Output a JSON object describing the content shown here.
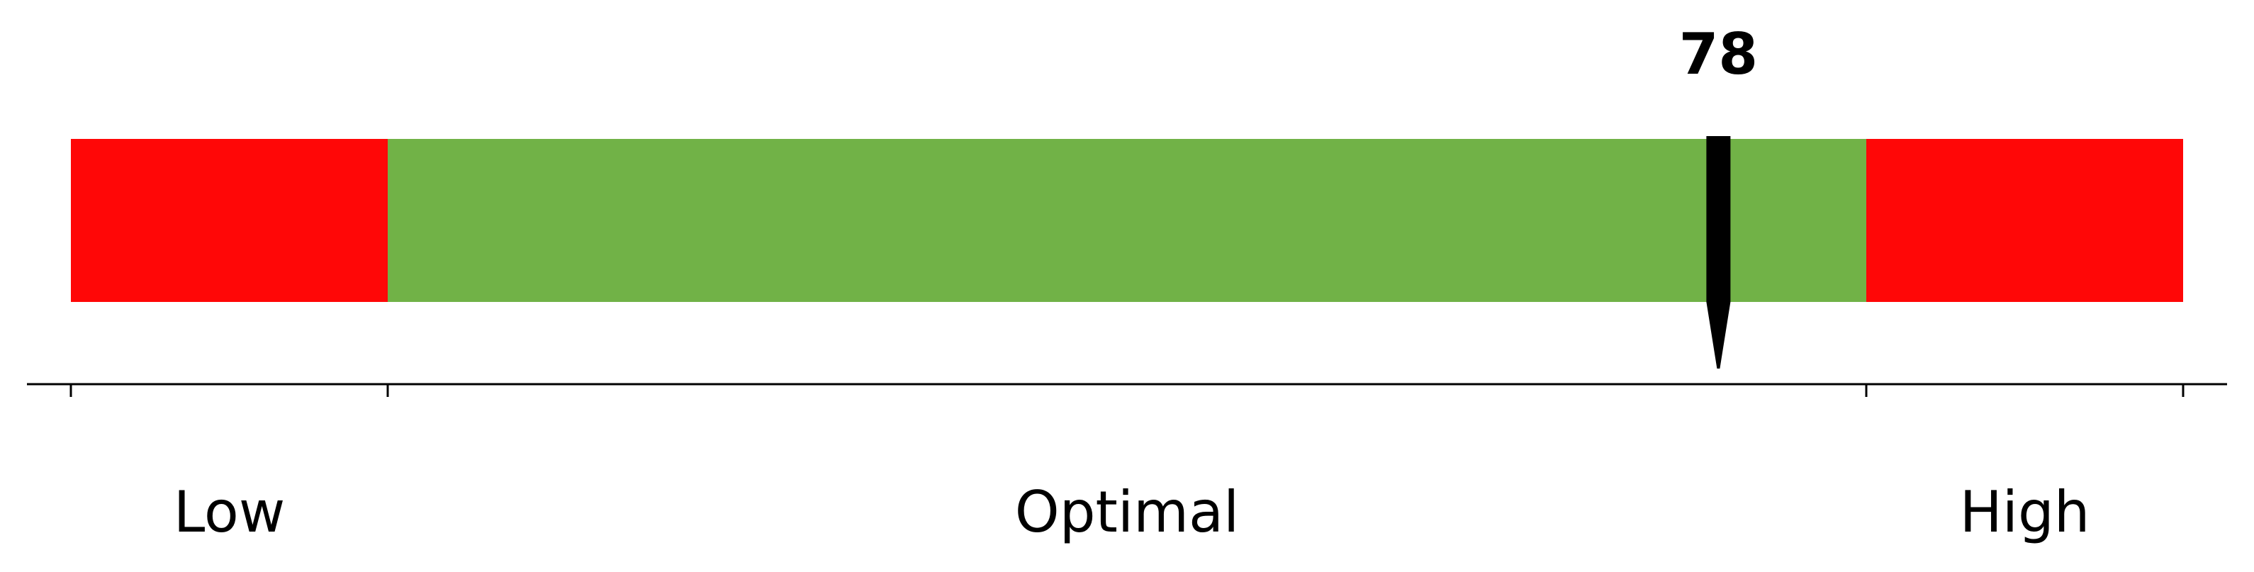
{
  "chart_data": {
    "type": "bullet",
    "value": 78,
    "value_label": "78",
    "range": [
      0,
      100
    ],
    "zones": [
      {
        "label": "Low",
        "from": 0,
        "to": 15,
        "color": "#ff0707"
      },
      {
        "label": "Optimal",
        "from": 15,
        "to": 85,
        "color": "#71b247"
      },
      {
        "label": "High",
        "from": 85,
        "to": 100,
        "color": "#ff0707"
      }
    ],
    "ticks": [
      0,
      15,
      85,
      100
    ],
    "marker_color": "#000000",
    "axis_color": "#000000"
  }
}
